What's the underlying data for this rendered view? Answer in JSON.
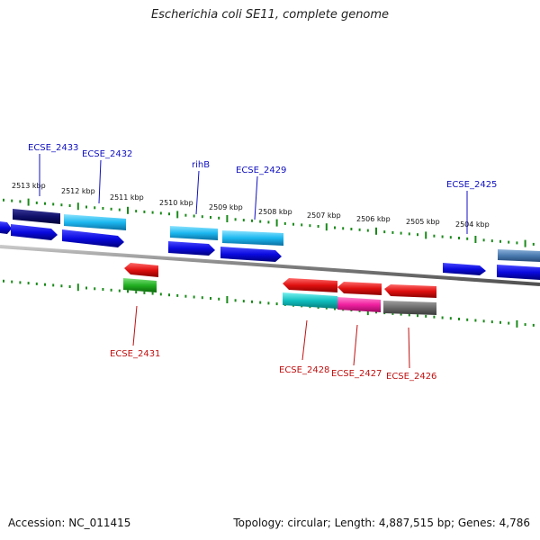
{
  "title": "Escherichia coli SE11, complete genome",
  "accession": "Accession: NC_011415",
  "summary": "Topology: circular; Length: 4,887,515 bp; Genes: 4,786",
  "kbp_ticks": [
    "2513 kbp",
    "2512 kbp",
    "2511 kbp",
    "2510 kbp",
    "2509 kbp",
    "2508 kbp",
    "2507 kbp",
    "2506 kbp",
    "2505 kbp",
    "2504 kbp"
  ],
  "forward_genes": [
    "ECSE_2433",
    "ECSE_2432",
    "rihB",
    "ECSE_2429",
    "ECSE_2425"
  ],
  "reverse_genes": [
    "ECSE_2431",
    "ECSE_2428",
    "ECSE_2427",
    "ECSE_2426"
  ],
  "colors": {
    "forward_cds": "#0a0ae0",
    "reverse_cds": "#e01010",
    "forward_label": "#1010c0",
    "reverse_label": "#c01010",
    "tick": "#1a8a1a",
    "backbone": "#808080"
  }
}
